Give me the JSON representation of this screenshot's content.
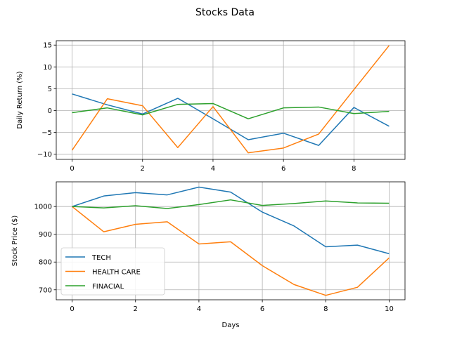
{
  "figure": {
    "title": "Stocks Data"
  },
  "colors": {
    "TECH": "#1f77b4",
    "HEALTH CARE": "#ff7f0e",
    "FINACIAL": "#2ca02c",
    "grid": "#b0b0b0"
  },
  "chart_data": [
    {
      "type": "line",
      "title": "",
      "xlabel": "",
      "ylabel": "Daily Return (%)",
      "xlim": [
        -0.45,
        9.45
      ],
      "ylim": [
        -11.2,
        16.0
      ],
      "xticks": [
        0,
        2,
        4,
        6,
        8
      ],
      "yticks": [
        -10,
        -5,
        0,
        5,
        10,
        15
      ],
      "grid": true,
      "x": [
        0,
        1,
        2,
        3,
        4,
        5,
        6,
        7,
        8,
        9
      ],
      "series": [
        {
          "name": "TECH",
          "values": [
            3.8,
            1.3,
            -0.8,
            2.8,
            -1.9,
            -6.7,
            -5.2,
            -8.0,
            0.7,
            -3.6
          ]
        },
        {
          "name": "HEALTH CARE",
          "values": [
            -9.1,
            2.7,
            1.1,
            -8.5,
            0.9,
            -9.7,
            -8.6,
            -5.4,
            4.8,
            14.9
          ]
        },
        {
          "name": "FINACIAL",
          "values": [
            -0.5,
            0.6,
            -1.0,
            1.4,
            1.6,
            -1.9,
            0.6,
            0.8,
            -0.7,
            -0.2
          ]
        }
      ]
    },
    {
      "type": "line",
      "title": "",
      "xlabel": "Days",
      "ylabel": "Stock Price ($)",
      "xlim": [
        -0.5,
        10.5
      ],
      "ylim": [
        664,
        1089
      ],
      "xticks": [
        0,
        2,
        4,
        6,
        8,
        10
      ],
      "yticks": [
        700,
        800,
        900,
        1000
      ],
      "grid": true,
      "legend": "lower-left",
      "x": [
        0,
        1,
        2,
        3,
        4,
        5,
        6,
        7,
        8,
        9,
        10
      ],
      "series": [
        {
          "name": "TECH",
          "values": [
            1000,
            1038,
            1050,
            1042,
            1070,
            1052,
            980,
            930,
            855,
            861,
            830
          ]
        },
        {
          "name": "HEALTH CARE",
          "values": [
            1000,
            909,
            936,
            945,
            865,
            873,
            787,
            719,
            680,
            709,
            815
          ]
        },
        {
          "name": "FINACIAL",
          "values": [
            1000,
            995,
            1003,
            993,
            1007,
            1024,
            1004,
            1011,
            1020,
            1013,
            1012
          ]
        }
      ]
    }
  ]
}
